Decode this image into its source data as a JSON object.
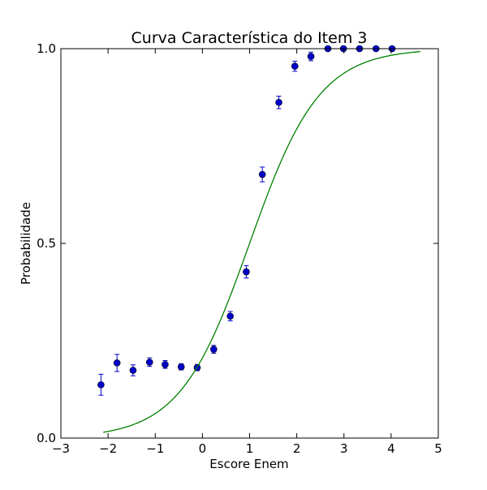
{
  "chart_data": {
    "type": "scatter",
    "title": "Curva Característica do Item 3",
    "xlabel": "Escore Enem",
    "ylabel": "Probabilidade",
    "xlim": [
      -3,
      5
    ],
    "ylim": [
      0.0,
      1.0
    ],
    "xticks": [
      -3,
      -2,
      -1,
      0,
      1,
      2,
      3,
      4,
      5
    ],
    "xtick_labels": [
      "−3",
      "−2",
      "−1",
      "0",
      "1",
      "2",
      "3",
      "4",
      "5"
    ],
    "yticks": [
      0.0,
      0.5,
      1.0
    ],
    "ytick_labels": [
      "0.0",
      "0.5",
      "1.0"
    ],
    "grid": false,
    "legend": false,
    "series": [
      {
        "kind": "errorbar",
        "color": "#0000cc",
        "points": [
          {
            "x": -2.15,
            "y": 0.137,
            "err": 0.027
          },
          {
            "x": -1.81,
            "y": 0.193,
            "err": 0.022
          },
          {
            "x": -1.47,
            "y": 0.174,
            "err": 0.014
          },
          {
            "x": -1.12,
            "y": 0.195,
            "err": 0.011
          },
          {
            "x": -0.79,
            "y": 0.189,
            "err": 0.01
          },
          {
            "x": -0.45,
            "y": 0.183,
            "err": 0.008
          },
          {
            "x": -0.11,
            "y": 0.181,
            "err": 0.008
          },
          {
            "x": 0.24,
            "y": 0.228,
            "err": 0.01
          },
          {
            "x": 0.59,
            "y": 0.313,
            "err": 0.012
          },
          {
            "x": 0.93,
            "y": 0.427,
            "err": 0.016
          },
          {
            "x": 1.27,
            "y": 0.677,
            "err": 0.019
          },
          {
            "x": 1.62,
            "y": 0.862,
            "err": 0.016
          },
          {
            "x": 1.96,
            "y": 0.955,
            "err": 0.013
          },
          {
            "x": 2.3,
            "y": 0.98,
            "err": 0.011
          },
          {
            "x": 2.66,
            "y": 1.0,
            "err": 0.004
          },
          {
            "x": 2.99,
            "y": 1.0,
            "err": 0.0
          },
          {
            "x": 3.33,
            "y": 1.0,
            "err": 0.0
          },
          {
            "x": 3.68,
            "y": 1.0,
            "err": 0.0
          },
          {
            "x": 4.02,
            "y": 1.0,
            "err": 0.0
          }
        ]
      },
      {
        "kind": "line",
        "color": "#008000",
        "x_range": [
          -2.1,
          4.62
        ],
        "model": "logistic",
        "a": 1.35,
        "b": 1.0
      }
    ]
  }
}
